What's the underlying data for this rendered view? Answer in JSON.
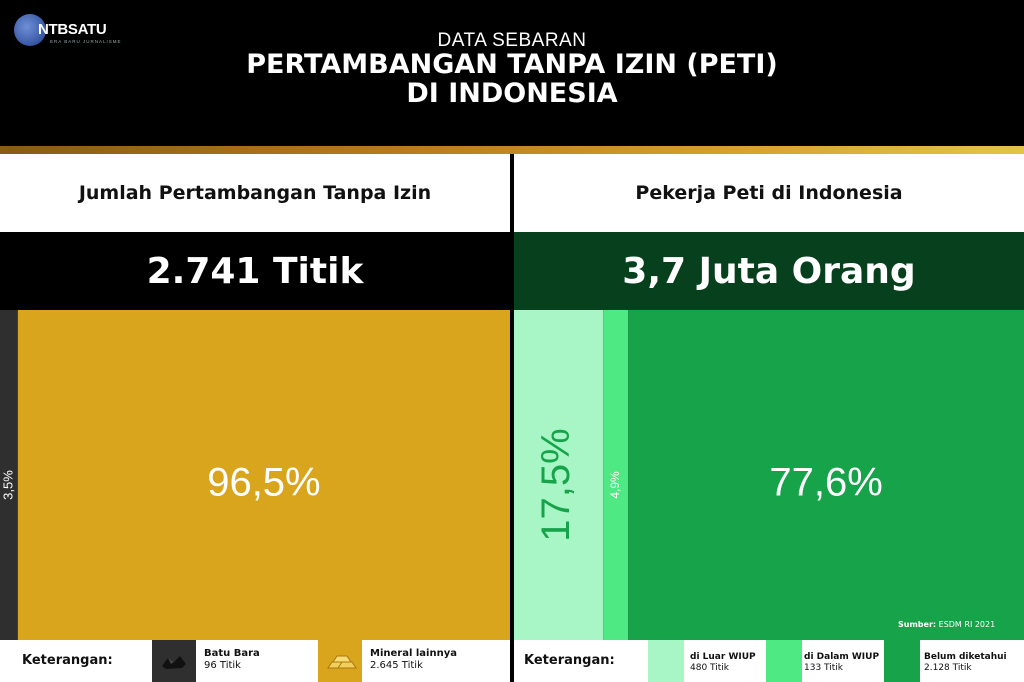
{
  "brand": {
    "name": "NTBSATU",
    "tagline": "ERA BARU JURNALISME"
  },
  "header": {
    "kicker": "DATA SEBARAN",
    "title_line1": "PERTAMBANGAN TANPA IZIN (PETI)",
    "title_line2": "DI INDONESIA"
  },
  "colors": {
    "gold": "#d9a51d",
    "dark_gray": "#2f2f2f",
    "light_green": "#a8f5c6",
    "mid_green": "#4ee983",
    "green": "#16a34a",
    "value_bg_right": "#07401d"
  },
  "panels": {
    "left": {
      "title": "Jumlah Pertambangan Tanpa Izin",
      "value": "2.741 Titik"
    },
    "right": {
      "title": "Pekerja Peti di Indonesia",
      "value": "3,7 Juta Orang"
    }
  },
  "legend": {
    "title": "Keterangan:",
    "left": [
      {
        "name": "Batu Bara",
        "count": "96 Titik",
        "icon": "coal-icon"
      },
      {
        "name": "Mineral lainnya",
        "count": "2.645 Titik",
        "icon": "gold-bars-icon"
      }
    ],
    "right": [
      {
        "name": "di Luar WIUP",
        "count": "480 Titik"
      },
      {
        "name": "di Dalam WIUP",
        "count": "133 Titik"
      },
      {
        "name": "Belum diketahui",
        "count": "2.128 Titik"
      }
    ]
  },
  "source": {
    "label": "Sumber:",
    "text": "ESDM RI 2021"
  },
  "chart_data": [
    {
      "type": "bar",
      "orientation": "horizontal-stacked-100",
      "title": "Jumlah Pertambangan Tanpa Izin",
      "categories": [
        "Batu Bara",
        "Mineral lainnya"
      ],
      "values": [
        3.5,
        96.5
      ],
      "labels": [
        "3,5%",
        "96,5%"
      ],
      "colors": [
        "#2f2f2f",
        "#d9a51d"
      ]
    },
    {
      "type": "bar",
      "orientation": "horizontal-stacked-100",
      "title": "Pekerja Peti di Indonesia",
      "categories": [
        "di Luar WIUP",
        "di Dalam WIUP",
        "Belum diketahui"
      ],
      "values": [
        17.5,
        4.9,
        77.6
      ],
      "labels": [
        "17,5%",
        "4,9%",
        "77,6%"
      ],
      "colors": [
        "#a8f5c6",
        "#4ee983",
        "#16a34a"
      ]
    }
  ]
}
